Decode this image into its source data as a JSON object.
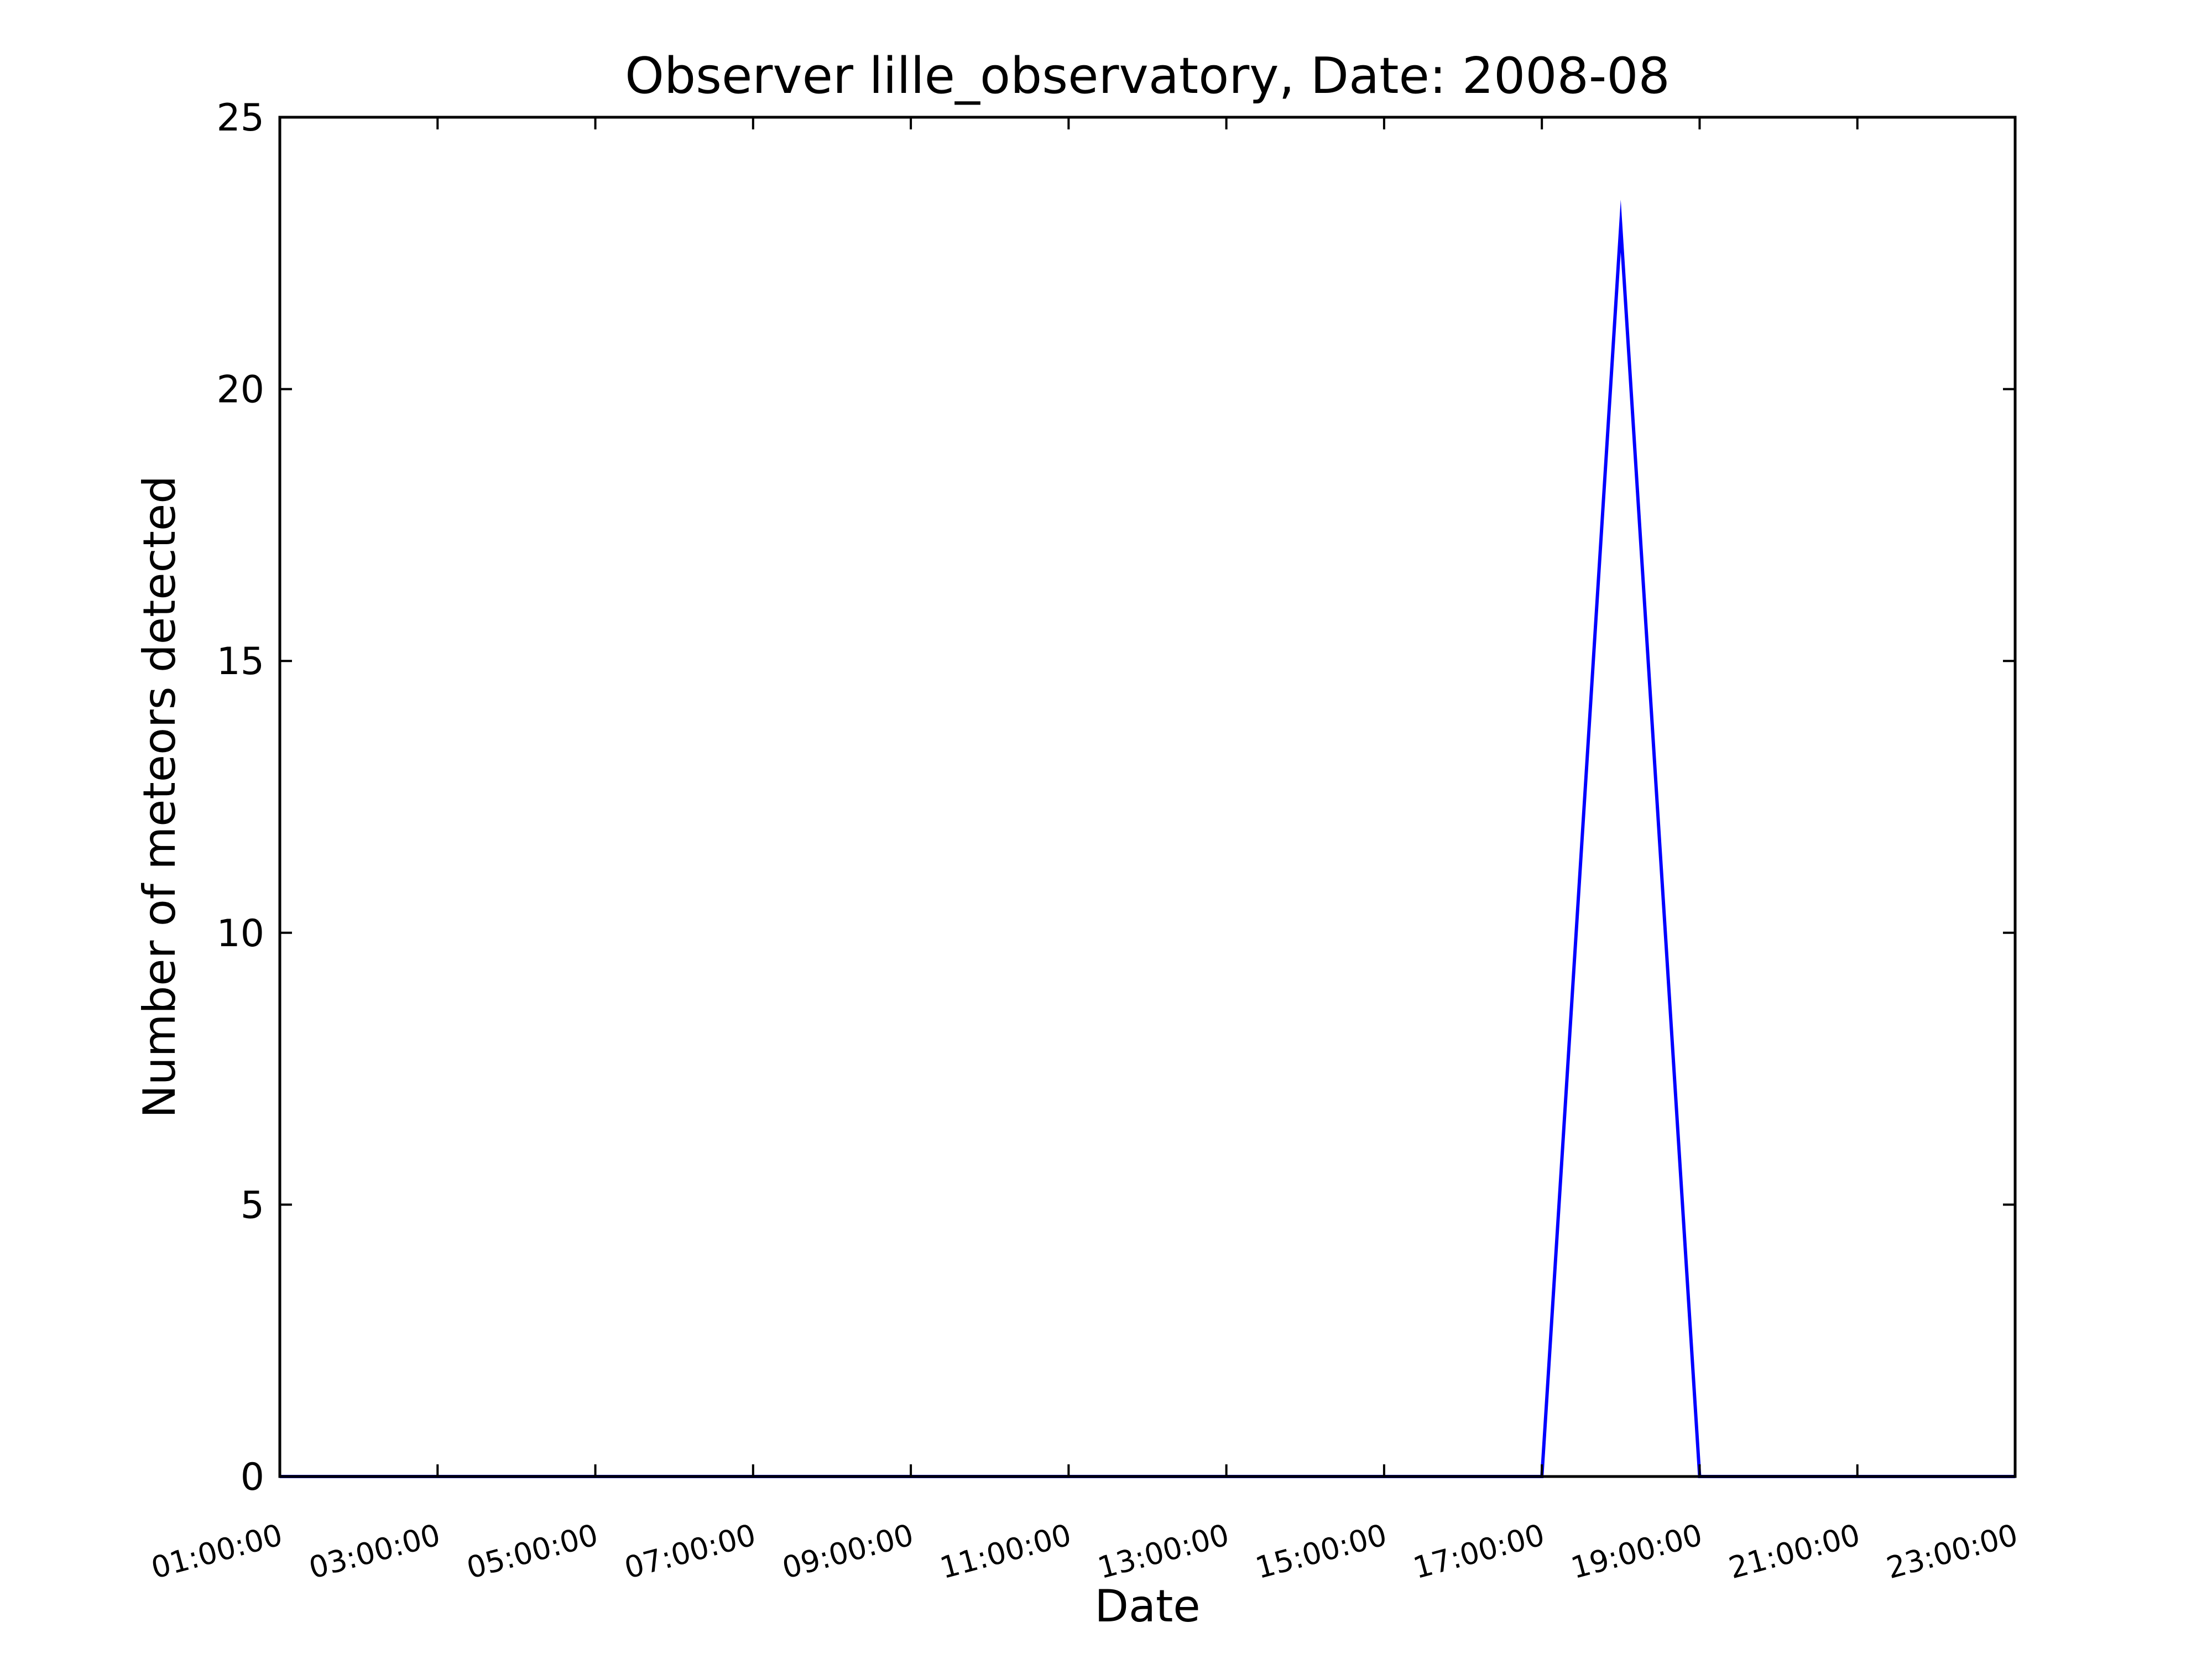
{
  "chart_data": {
    "type": "line",
    "title": "Observer lille_observatory, Date: 2008-08",
    "xlabel": "Date",
    "ylabel": "Number of meteors detected",
    "xlim": [
      "01:00:00",
      "23:00:00"
    ],
    "ylim": [
      0,
      25
    ],
    "x_ticks": [
      "01:00:00",
      "03:00:00",
      "05:00:00",
      "07:00:00",
      "09:00:00",
      "11:00:00",
      "13:00:00",
      "15:00:00",
      "17:00:00",
      "19:00:00",
      "21:00:00",
      "23:00:00"
    ],
    "y_ticks": [
      "0",
      "5",
      "10",
      "15",
      "20",
      "25"
    ],
    "grid": false,
    "line_color": "#0000ff",
    "series": [
      {
        "x": [
          "01:00:00",
          "17:00:00",
          "18:00:00",
          "19:00:00",
          "23:00:00"
        ],
        "y": [
          0,
          0,
          23,
          0,
          0
        ]
      }
    ]
  }
}
